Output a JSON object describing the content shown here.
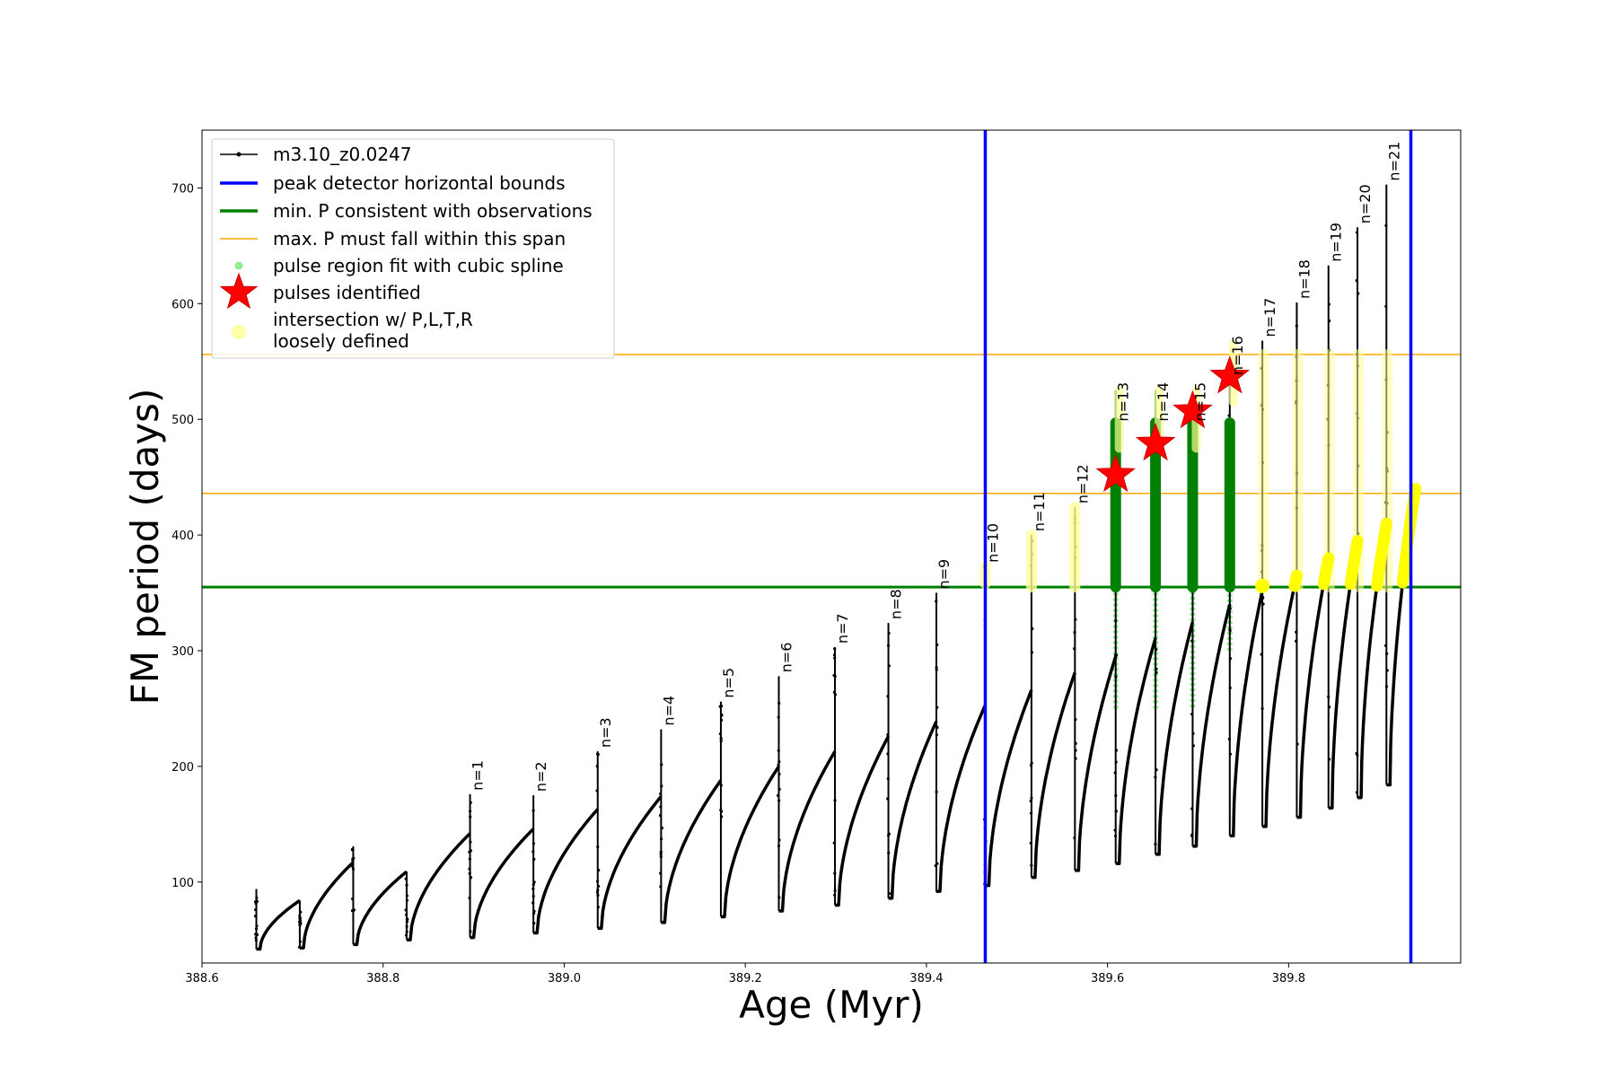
{
  "chart_data": {
    "type": "line",
    "title": "",
    "xlabel": "Age (Myr)",
    "ylabel": "FM period (days)",
    "xlim": [
      388.6,
      389.99
    ],
    "ylim": [
      30,
      750
    ],
    "x_ticks": [
      "388.6",
      "388.8",
      "389.0",
      "389.2",
      "389.4",
      "389.6",
      "389.8"
    ],
    "x_tick_values": [
      388.6,
      388.8,
      389.0,
      389.2,
      389.4,
      389.6,
      389.8
    ],
    "y_ticks": [
      "100",
      "200",
      "300",
      "400",
      "500",
      "600",
      "700"
    ],
    "y_tick_values": [
      100,
      200,
      300,
      400,
      500,
      600,
      700
    ],
    "grid": false,
    "legend_position": "top-left",
    "legend": [
      {
        "label": "m3.10_z0.0247",
        "kind": "line-dot",
        "color": "#000000"
      },
      {
        "label": "peak detector horizontal bounds",
        "kind": "line",
        "color": "#0000ff"
      },
      {
        "label": "min. P consistent with observations",
        "kind": "line",
        "color": "#008000"
      },
      {
        "label": "max. P must fall within this span",
        "kind": "thin-line",
        "color": "#ffa500"
      },
      {
        "label": "pulse region fit with cubic spline",
        "kind": "dot",
        "color": "#90ee90"
      },
      {
        "label": "pulses identified",
        "kind": "star",
        "color": "#ff0000"
      },
      {
        "label": "intersection w/ P,L,T,R",
        "label2": "loosely defined",
        "kind": "big-dot",
        "color": "#ffff99"
      }
    ],
    "vertical_lines": [
      {
        "x": 389.465,
        "color": "#0000ff"
      },
      {
        "x": 389.935,
        "color": "#0000ff"
      }
    ],
    "horizontal_lines": [
      {
        "y": 355,
        "color": "#008000",
        "width": 3
      },
      {
        "y": 436,
        "color": "#ffa500",
        "width": 1.5
      },
      {
        "y": 556,
        "color": "#ffa500",
        "width": 1.5
      }
    ],
    "pulses": [
      {
        "x": 388.66,
        "min": 42,
        "end": 90,
        "peak": 94,
        "label": ""
      },
      {
        "x": 388.708,
        "min": 43,
        "end": 84,
        "peak": 84,
        "label": ""
      },
      {
        "x": 388.767,
        "min": 46,
        "end": 117,
        "peak": 131,
        "label": ""
      },
      {
        "x": 388.826,
        "min": 50,
        "end": 109,
        "peak": 109,
        "label": ""
      },
      {
        "x": 388.896,
        "min": 52,
        "end": 142,
        "peak": 176,
        "label": "n=1"
      },
      {
        "x": 388.966,
        "min": 56,
        "end": 146,
        "peak": 175,
        "label": "n=2"
      },
      {
        "x": 389.037,
        "min": 60,
        "end": 163,
        "peak": 213,
        "label": "n=3"
      },
      {
        "x": 389.107,
        "min": 65,
        "end": 174,
        "peak": 232,
        "label": "n=4"
      },
      {
        "x": 389.173,
        "min": 70,
        "end": 188,
        "peak": 256,
        "label": "n=5"
      },
      {
        "x": 389.237,
        "min": 75,
        "end": 200,
        "peak": 278,
        "label": "n=6"
      },
      {
        "x": 389.299,
        "min": 80,
        "end": 213,
        "peak": 303,
        "label": "n=7"
      },
      {
        "x": 389.358,
        "min": 86,
        "end": 226,
        "peak": 324,
        "label": "n=8"
      },
      {
        "x": 389.411,
        "min": 92,
        "end": 239,
        "peak": 350,
        "label": "n=9"
      },
      {
        "x": 389.465,
        "min": 97,
        "end": 253,
        "peak": 373,
        "label": "n=10"
      },
      {
        "x": 389.516,
        "min": 104,
        "end": 266,
        "peak": 400,
        "label": "n=11"
      },
      {
        "x": 389.564,
        "min": 110,
        "end": 281,
        "peak": 424,
        "label": "n=12"
      },
      {
        "x": 389.609,
        "min": 116,
        "end": 295,
        "peak": 495,
        "label": "n=13"
      },
      {
        "x": 389.653,
        "min": 124,
        "end": 311,
        "peak": 495,
        "label": "n=14"
      },
      {
        "x": 389.694,
        "min": 131,
        "end": 325,
        "peak": 495,
        "label": "n=15"
      },
      {
        "x": 389.735,
        "min": 140,
        "end": 340,
        "peak": 535,
        "label": "n=16"
      },
      {
        "x": 389.771,
        "min": 148,
        "end": 352,
        "peak": 568,
        "label": "n=17"
      },
      {
        "x": 389.809,
        "min": 156,
        "end": 365,
        "peak": 601,
        "label": "n=18"
      },
      {
        "x": 389.844,
        "min": 164,
        "end": 380,
        "peak": 633,
        "label": "n=19"
      },
      {
        "x": 389.876,
        "min": 173,
        "end": 395,
        "peak": 666,
        "label": "n=20"
      },
      {
        "x": 389.908,
        "min": 184,
        "end": 410,
        "peak": 703,
        "label": "n=21"
      },
      {
        "x": 389.94,
        "min": 0,
        "end": 440,
        "peak": 0,
        "label": ""
      }
    ],
    "stars": [
      {
        "x": 389.609,
        "y": 452
      },
      {
        "x": 389.653,
        "y": 479
      },
      {
        "x": 389.694,
        "y": 507
      },
      {
        "x": 389.735,
        "y": 537
      }
    ]
  }
}
